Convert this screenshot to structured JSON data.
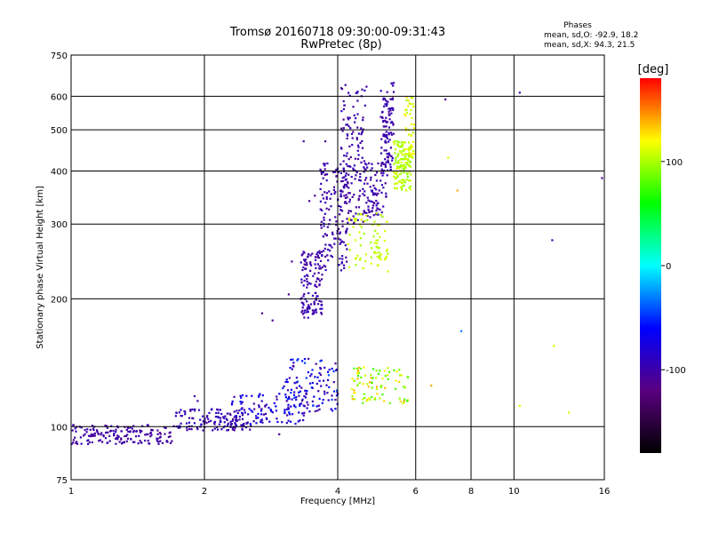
{
  "chart_data": {
    "type": "scatter",
    "title": "Tromsø 20160718 09:30:00-09:31:43",
    "subtitle": "RwPretec (8p)",
    "xlabel": "Frequency [MHz]",
    "ylabel": "Stationary phase Virtual Height [km]",
    "x_scale": "log",
    "y_scale": "log",
    "xlim": [
      1,
      16
    ],
    "ylim": [
      75,
      750
    ],
    "xticks": [
      1,
      2,
      4,
      6,
      8,
      10,
      16
    ],
    "yticks": [
      75,
      100,
      200,
      300,
      400,
      500,
      600,
      750
    ],
    "grid": true,
    "phase_note": {
      "heading": "Phases",
      "line_o": "mean, sd,O: -92.9, 18.2",
      "line_x": "mean, sd,X: 94.3, 21.5"
    },
    "colorbar": {
      "label": "[deg]",
      "ticks": [
        100,
        0,
        -100
      ],
      "range": [
        -180,
        180
      ],
      "colors": [
        "#000000",
        "#5a0080",
        "#0000ff",
        "#00ffff",
        "#00ff00",
        "#ffff00",
        "#ff0000"
      ]
    },
    "clusters": [
      {
        "f": [
          1.0,
          1.72
        ],
        "h": [
          91,
          101
        ],
        "n": 170,
        "phase": [
          -110,
          -95
        ]
      },
      {
        "f": [
          1.72,
          2.55
        ],
        "h": [
          98,
          110
        ],
        "n": 130,
        "phase": [
          -110,
          -85
        ]
      },
      {
        "f": [
          2.3,
          3.4
        ],
        "h": [
          100,
          120
        ],
        "n": 110,
        "phase": [
          -110,
          -60
        ]
      },
      {
        "f": [
          3.0,
          4.0
        ],
        "h": [
          108,
          145
        ],
        "n": 120,
        "phase": [
          -110,
          -40
        ]
      },
      {
        "f": [
          4.3,
          5.8
        ],
        "h": [
          113,
          138
        ],
        "n": 90,
        "phase": [
          70,
          140
        ]
      },
      {
        "f": [
          3.3,
          3.7
        ],
        "h": [
          180,
          260
        ],
        "n": 130,
        "phase": [
          -110,
          -90
        ]
      },
      {
        "f": [
          3.65,
          4.2
        ],
        "h": [
          230,
          420
        ],
        "n": 140,
        "phase": [
          -110,
          -90
        ]
      },
      {
        "f": [
          4.05,
          4.65
        ],
        "h": [
          300,
          640
        ],
        "n": 160,
        "phase": [
          -110,
          -90
        ]
      },
      {
        "f": [
          4.6,
          5.15
        ],
        "h": [
          310,
          420
        ],
        "n": 80,
        "phase": [
          -110,
          -90
        ]
      },
      {
        "f": [
          5.0,
          5.35
        ],
        "h": [
          390,
          650
        ],
        "n": 110,
        "phase": [
          -110,
          -90
        ]
      },
      {
        "f": [
          4.2,
          5.2
        ],
        "h": [
          232,
          320
        ],
        "n": 80,
        "phase": [
          95,
          115
        ]
      },
      {
        "f": [
          5.35,
          5.85
        ],
        "h": [
          360,
          470
        ],
        "n": 130,
        "phase": [
          90,
          115
        ]
      },
      {
        "f": [
          5.65,
          5.95
        ],
        "h": [
          430,
          600
        ],
        "n": 50,
        "phase": [
          100,
          125
        ]
      }
    ],
    "outliers": [
      {
        "f": 7.0,
        "h": 590,
        "phase": -110
      },
      {
        "f": 10.3,
        "h": 612,
        "phase": -100
      },
      {
        "f": 7.45,
        "h": 360,
        "phase": 140
      },
      {
        "f": 7.1,
        "h": 430,
        "phase": 110
      },
      {
        "f": 12.2,
        "h": 275,
        "phase": -100
      },
      {
        "f": 7.6,
        "h": 168,
        "phase": -30
      },
      {
        "f": 15.8,
        "h": 385,
        "phase": -110
      },
      {
        "f": 12.3,
        "h": 155,
        "phase": 110
      },
      {
        "f": 13.3,
        "h": 108,
        "phase": 110
      },
      {
        "f": 10.3,
        "h": 112,
        "phase": 110
      },
      {
        "f": 6.5,
        "h": 125,
        "phase": 140
      },
      {
        "f": 3.45,
        "h": 340,
        "phase": -110
      },
      {
        "f": 3.1,
        "h": 205,
        "phase": -110
      },
      {
        "f": 3.15,
        "h": 245,
        "phase": -110
      },
      {
        "f": 2.7,
        "h": 185,
        "phase": -110
      },
      {
        "f": 2.85,
        "h": 178,
        "phase": -110
      },
      {
        "f": 2.95,
        "h": 96,
        "phase": -110
      },
      {
        "f": 1.9,
        "h": 118,
        "phase": -100
      },
      {
        "f": 1.93,
        "h": 115,
        "phase": -100
      },
      {
        "f": 3.75,
        "h": 470,
        "phase": -110
      },
      {
        "f": 3.55,
        "h": 350,
        "phase": -110
      },
      {
        "f": 3.35,
        "h": 470,
        "phase": -110
      }
    ]
  }
}
